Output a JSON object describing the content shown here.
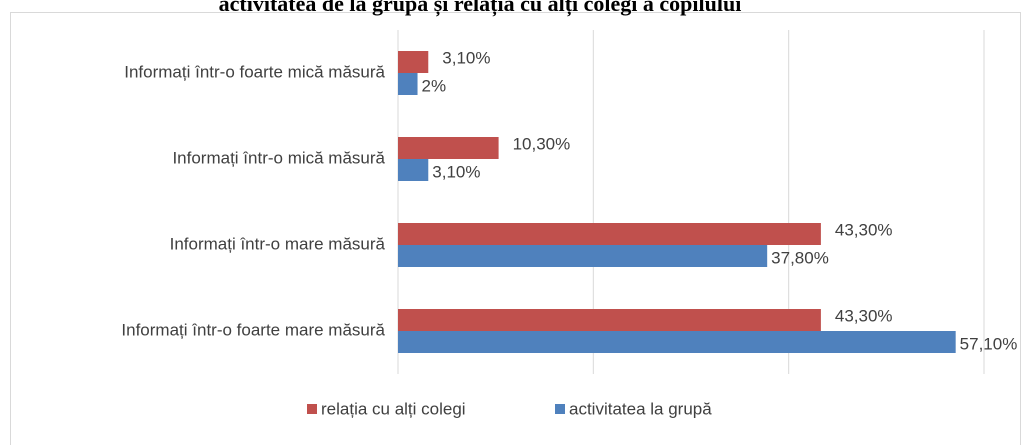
{
  "chart_data": {
    "type": "barh",
    "title": "activitatea de la grupă și relația cu alți colegi a copilului",
    "categories": [
      "Informați într-o foarte mică măsură",
      "Informați într-o mică măsură",
      "Informați într-o mare măsură",
      "Informați într-o foarte mare măsură"
    ],
    "series": [
      {
        "name": "relația cu alți colegi",
        "color": "#c0504d",
        "values": [
          3.1,
          10.3,
          43.3,
          43.3
        ],
        "value_labels": [
          "3,10%",
          "10,30%",
          "43,30%",
          "43,30%"
        ]
      },
      {
        "name": "activitatea la grupă",
        "color": "#4f81bd",
        "values": [
          2,
          3.1,
          37.8,
          57.1
        ],
        "value_labels": [
          "2%",
          "3,10%",
          "37,80%",
          "57,10%"
        ]
      }
    ],
    "xlim": [
      0,
      60
    ],
    "xticks": [
      0,
      20,
      40,
      60
    ],
    "grid": true,
    "legend": "bottom"
  }
}
